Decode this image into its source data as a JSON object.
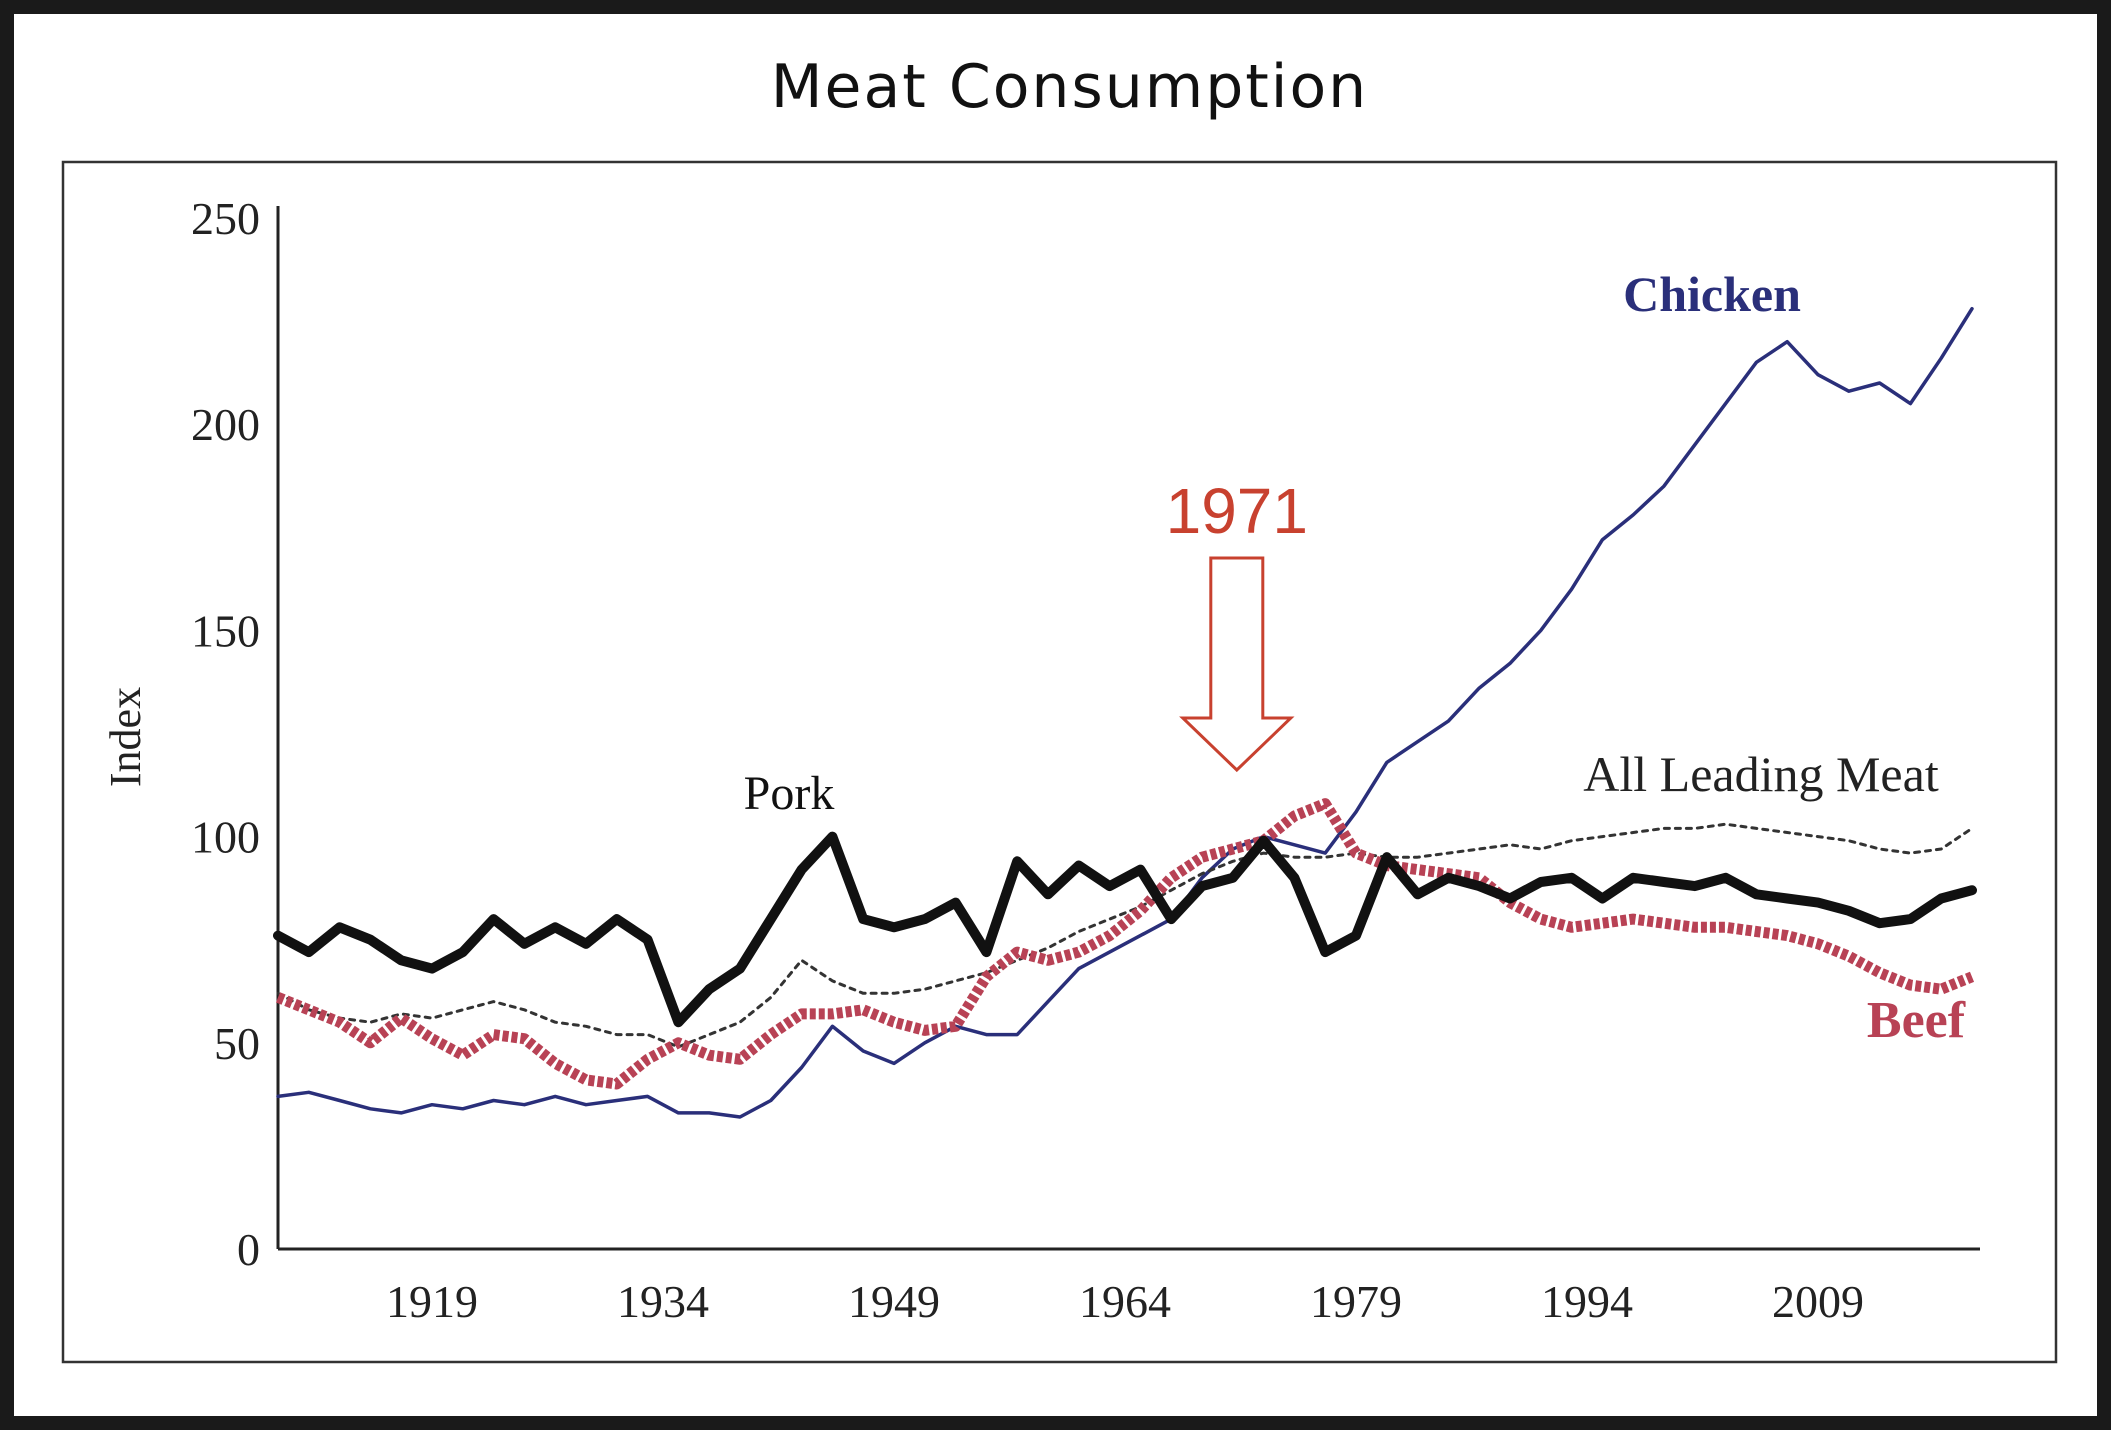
{
  "page": {
    "title": "Meat Consumption"
  },
  "colors": {
    "chicken": "#2a2f7a",
    "pork": "#111111",
    "all_leading_meat": "#333333",
    "beef": "#b84255",
    "annotation": "#c8412f",
    "axis": "#222222",
    "frame": "#333333"
  },
  "chart_data": {
    "type": "line",
    "title": "Meat Consumption",
    "xlabel": "",
    "ylabel": "Index",
    "xlim": [
      1909,
      2019
    ],
    "ylim": [
      0,
      250
    ],
    "x_ticks": [
      1919,
      1934,
      1949,
      1964,
      1979,
      1994,
      2009
    ],
    "y_ticks": [
      0,
      50,
      100,
      150,
      200,
      250
    ],
    "grid": false,
    "x": [
      1909,
      1911,
      1913,
      1915,
      1917,
      1919,
      1921,
      1923,
      1925,
      1927,
      1929,
      1931,
      1933,
      1935,
      1937,
      1939,
      1941,
      1943,
      1945,
      1947,
      1949,
      1951,
      1953,
      1955,
      1957,
      1959,
      1961,
      1963,
      1965,
      1967,
      1969,
      1971,
      1973,
      1975,
      1977,
      1979,
      1981,
      1983,
      1985,
      1987,
      1989,
      1991,
      1993,
      1995,
      1997,
      1999,
      2001,
      2003,
      2005,
      2007,
      2009,
      2011,
      2013,
      2015,
      2017,
      2019
    ],
    "series": [
      {
        "name": "Chicken",
        "label": "Chicken",
        "values": [
          37,
          38,
          36,
          34,
          33,
          35,
          34,
          36,
          35,
          37,
          35,
          36,
          37,
          33,
          33,
          32,
          36,
          44,
          54,
          48,
          45,
          50,
          54,
          52,
          52,
          60,
          68,
          72,
          76,
          80,
          90,
          97,
          100,
          98,
          96,
          106,
          118,
          123,
          128,
          136,
          142,
          150,
          160,
          172,
          178,
          185,
          195,
          205,
          215,
          220,
          212,
          208,
          210,
          205,
          216,
          228
        ]
      },
      {
        "name": "Pork",
        "label": "Pork",
        "values": [
          76,
          72,
          78,
          75,
          70,
          68,
          72,
          80,
          74,
          78,
          74,
          80,
          75,
          55,
          63,
          68,
          80,
          92,
          100,
          80,
          78,
          80,
          84,
          72,
          94,
          86,
          93,
          88,
          92,
          80,
          88,
          90,
          99,
          90,
          72,
          76,
          95,
          86,
          90,
          88,
          85,
          89,
          90,
          85,
          90,
          89,
          88,
          90,
          86,
          85,
          84,
          82,
          79,
          80,
          85,
          87
        ]
      },
      {
        "name": "All Leading Meat",
        "label": "All Leading Meat",
        "values": [
          62,
          58,
          56,
          55,
          57,
          56,
          58,
          60,
          58,
          55,
          54,
          52,
          52,
          49,
          52,
          55,
          61,
          70,
          65,
          62,
          62,
          63,
          65,
          67,
          70,
          73,
          77,
          80,
          83,
          87,
          91,
          94,
          96,
          95,
          95,
          96,
          95,
          95,
          96,
          97,
          98,
          97,
          99,
          100,
          101,
          102,
          102,
          103,
          102,
          101,
          100,
          99,
          97,
          96,
          97,
          102
        ]
      },
      {
        "name": "Beef",
        "label": "Beef",
        "values": [
          61,
          58,
          55,
          50,
          56,
          51,
          47,
          52,
          51,
          45,
          41,
          40,
          46,
          50,
          47,
          46,
          52,
          57,
          57,
          58,
          55,
          53,
          54,
          66,
          72,
          70,
          72,
          76,
          82,
          90,
          95,
          97,
          99,
          105,
          108,
          96,
          93,
          92,
          91,
          90,
          84,
          80,
          78,
          79,
          80,
          79,
          78,
          78,
          77,
          76,
          74,
          71,
          67,
          64,
          63,
          66
        ]
      }
    ],
    "annotations": [
      {
        "text": "1971",
        "x": 1971
      }
    ]
  }
}
